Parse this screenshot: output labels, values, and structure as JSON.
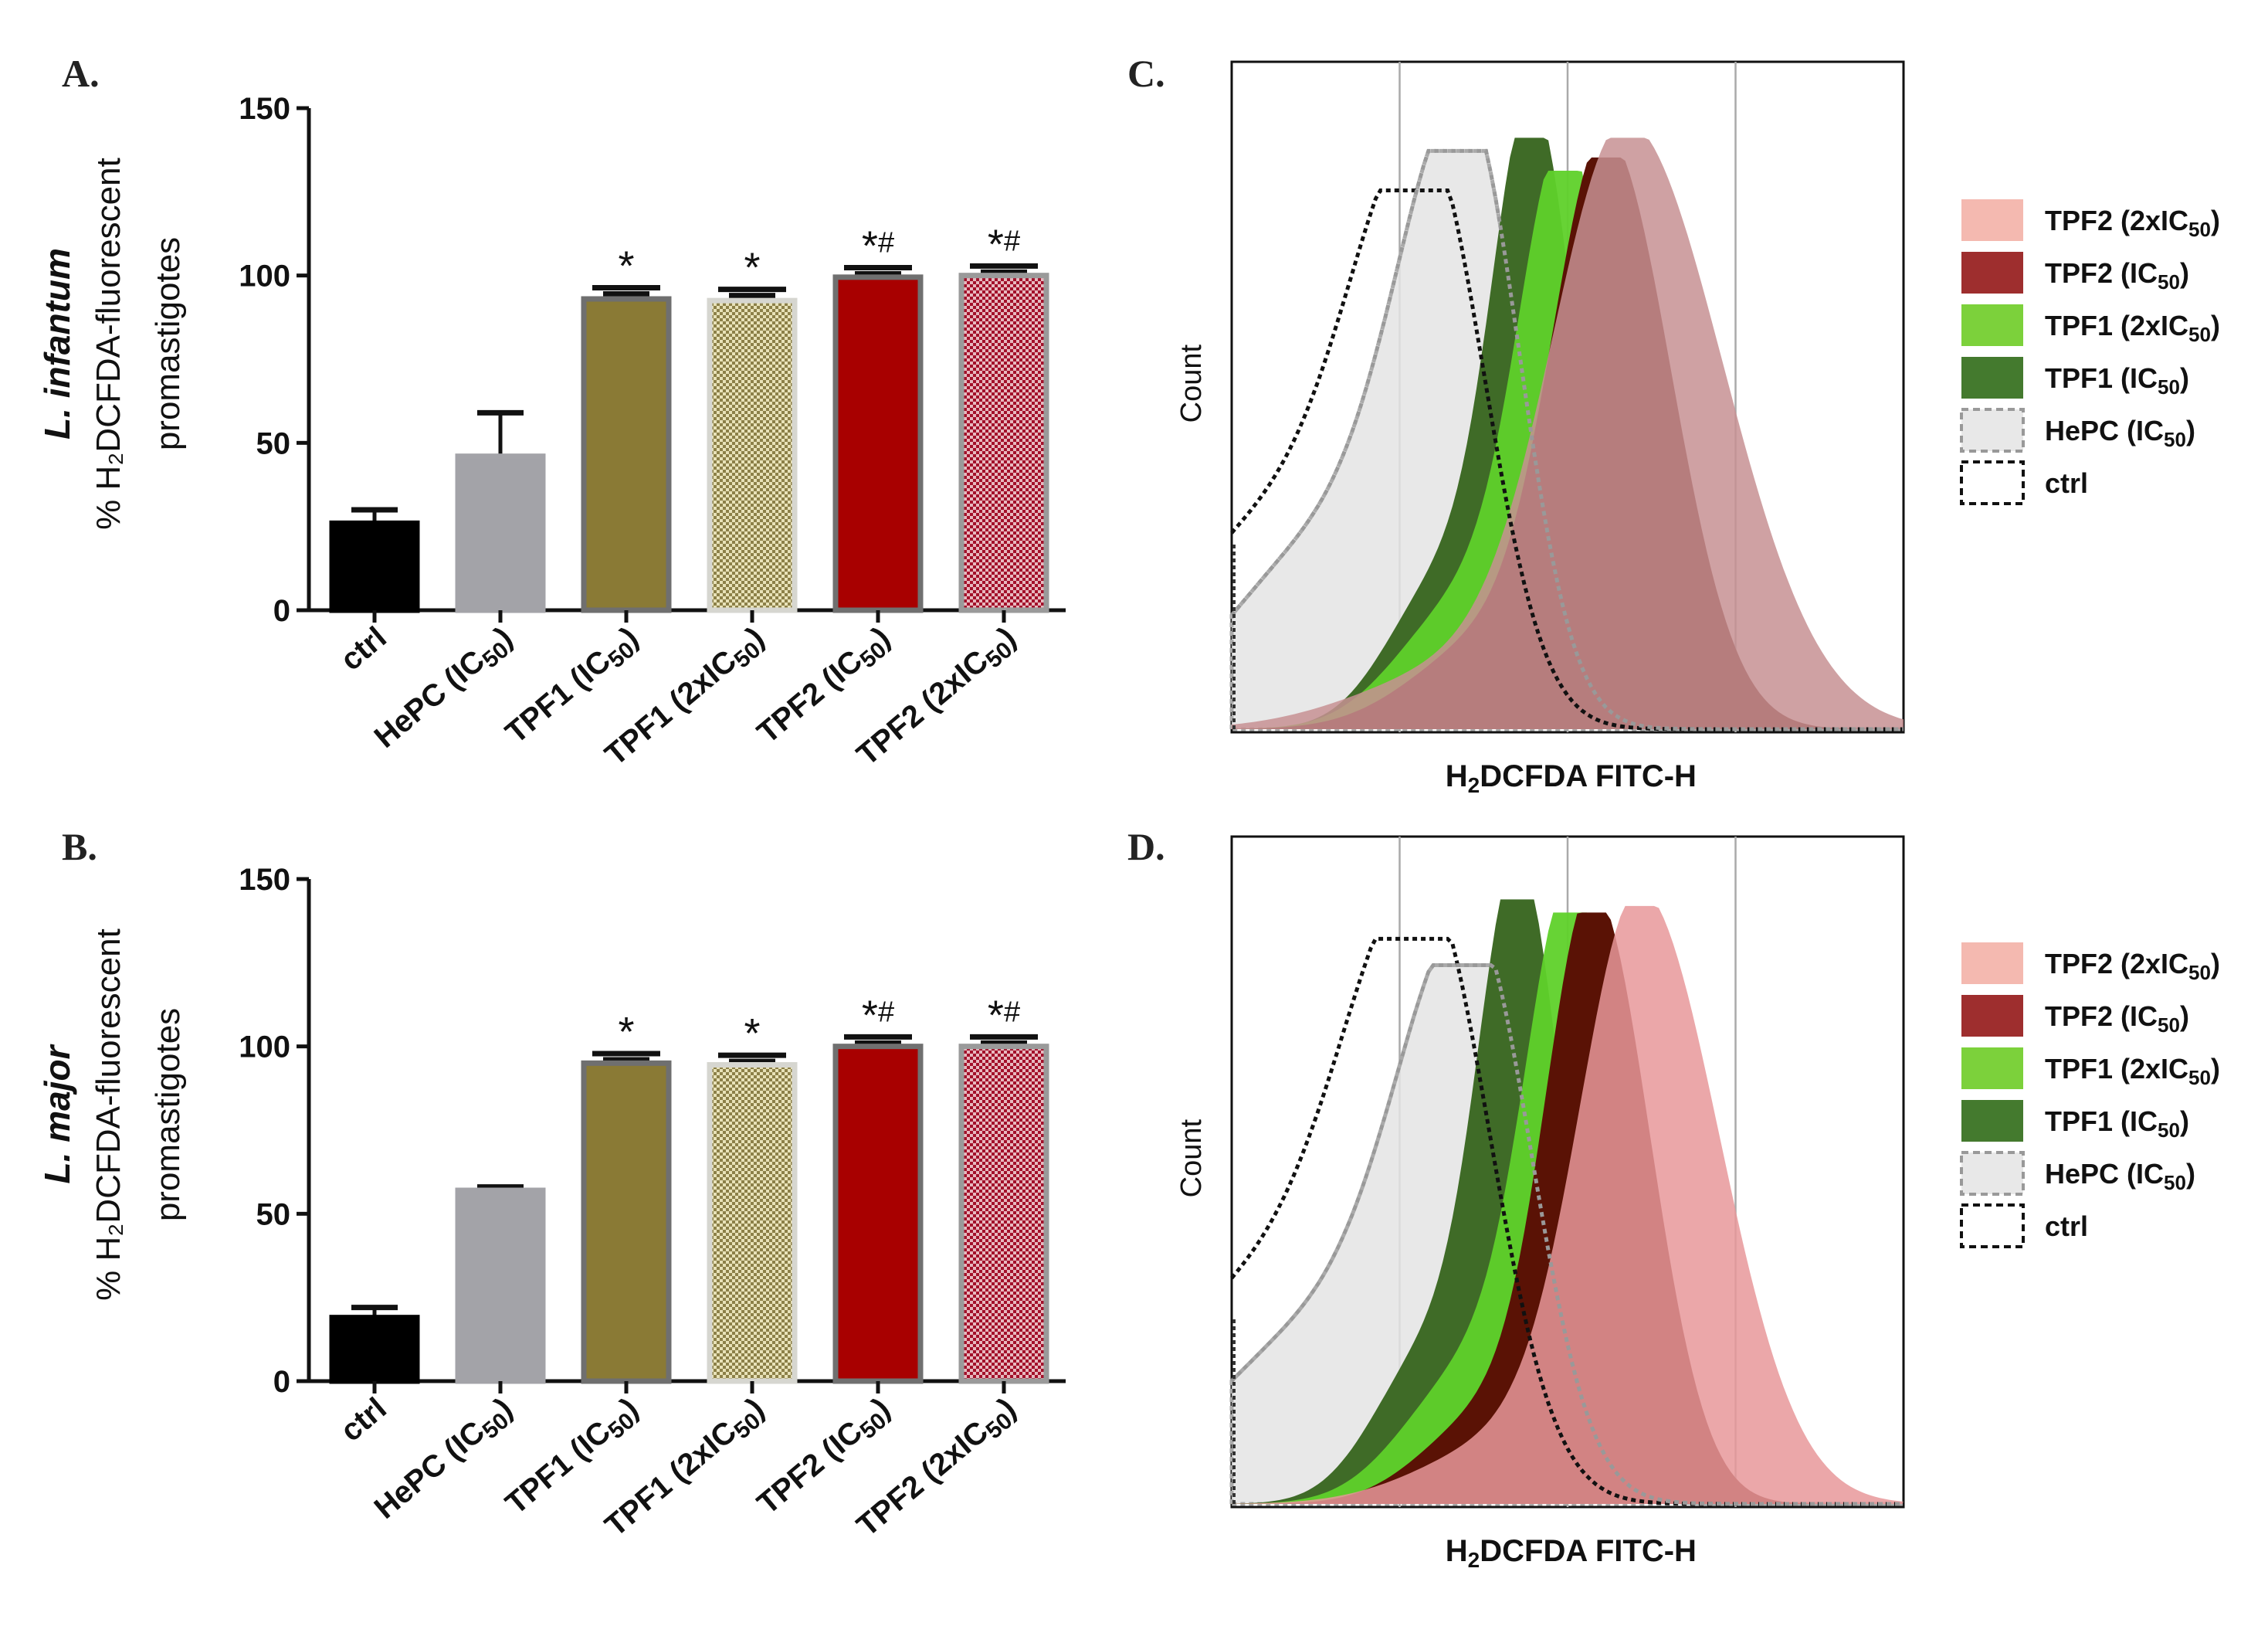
{
  "chart_data": [
    {
      "panel": "A.",
      "type": "bar",
      "species": "L. infantum",
      "ylabel_line1": "% H₂DCFDA-fluorescent",
      "ylabel_line2": "promastigotes",
      "ylim": [
        0,
        150
      ],
      "yticks": [
        0,
        50,
        100,
        150
      ],
      "categories": [
        "ctrl",
        "HePC (IC50)",
        "TPF1 (IC50)",
        "TPF1 (2xIC50)",
        "TPF2 (IC50)",
        "TPF2 (2xIC50)"
      ],
      "values": [
        26,
        46,
        93,
        92.5,
        99.5,
        100
      ],
      "errors": [
        4,
        13,
        1.5,
        1.5,
        1,
        1
      ],
      "significance": [
        "",
        "",
        "*",
        "*",
        "*#",
        "*#"
      ],
      "colors": [
        "#000000",
        "#a3a3a8",
        "#8a7a35",
        "#d8d2a0",
        "#a80000",
        "#c98a93"
      ]
    },
    {
      "panel": "B.",
      "type": "bar",
      "species": "L. major",
      "ylabel_line1": "% H₂DCFDA-fluorescent",
      "ylabel_line2": "promastigotes",
      "ylim": [
        0,
        150
      ],
      "yticks": [
        0,
        50,
        100,
        150
      ],
      "categories": [
        "ctrl",
        "HePC (IC50)",
        "TPF1 (IC50)",
        "TPF1 (2xIC50)",
        "TPF2 (IC50)",
        "TPF2 (2xIC50)"
      ],
      "values": [
        19,
        57,
        95,
        94.5,
        100,
        100
      ],
      "errors": [
        3,
        1,
        1,
        1,
        1,
        1
      ],
      "significance": [
        "",
        "",
        "*",
        "*",
        "*#",
        "*#"
      ],
      "colors": [
        "#000000",
        "#a3a3a8",
        "#8a7a35",
        "#d8d2a0",
        "#a80000",
        "#c98a93"
      ]
    },
    {
      "panel": "C.",
      "type": "area",
      "ylabel": "Count",
      "xlabel": "H₂DCFDA FITC-H",
      "series": [
        {
          "name": "ctrl",
          "peak": 0.29,
          "width": 0.11,
          "height": 0.82
        },
        {
          "name": "HePC (IC50)",
          "peak": 0.35,
          "width": 0.1,
          "height": 0.88
        },
        {
          "name": "TPF1 (IC50)",
          "peak": 0.45,
          "width": 0.06,
          "height": 0.9
        },
        {
          "name": "TPF1 (2xIC50)",
          "peak": 0.5,
          "width": 0.07,
          "height": 0.85
        },
        {
          "name": "TPF2 (IC50)",
          "peak": 0.56,
          "width": 0.08,
          "height": 0.87
        },
        {
          "name": "TPF2 (2xIC50)",
          "peak": 0.59,
          "width": 0.11,
          "height": 0.9
        }
      ]
    },
    {
      "panel": "D.",
      "type": "area",
      "ylabel": "Count",
      "xlabel": "H₂DCFDA FITC-H",
      "series": [
        {
          "name": "ctrl",
          "peak": 0.29,
          "width": 0.12,
          "height": 0.86
        },
        {
          "name": "HePC (IC50)",
          "peak": 0.36,
          "width": 0.11,
          "height": 0.82
        },
        {
          "name": "TPF1 (IC50)",
          "peak": 0.43,
          "width": 0.06,
          "height": 0.92
        },
        {
          "name": "TPF1 (2xIC50)",
          "peak": 0.51,
          "width": 0.07,
          "height": 0.9
        },
        {
          "name": "TPF2 (IC50)",
          "peak": 0.54,
          "width": 0.07,
          "height": 0.9
        },
        {
          "name": "TPF2 (2xIC50)",
          "peak": 0.61,
          "width": 0.09,
          "height": 0.91
        }
      ]
    }
  ],
  "legend": {
    "entries": [
      {
        "base": "TPF2 (2xIC",
        "sub": "50",
        "end": ")",
        "fill": "#f4b9b0",
        "dashed": false
      },
      {
        "base": "TPF2 (IC",
        "sub": "50",
        "end": ")",
        "fill": "#9e2e2e",
        "dashed": false
      },
      {
        "base": "TPF1 (2xIC",
        "sub": "50",
        "end": ")",
        "fill": "#7cd13b",
        "dashed": false
      },
      {
        "base": "TPF1 (IC",
        "sub": "50",
        "end": ")",
        "fill": "#447a2e",
        "dashed": false
      },
      {
        "base": "HePC (IC",
        "sub": "50",
        "end": ")",
        "fill": "#e8e8e8",
        "dashed": true,
        "stroke": "#999999"
      },
      {
        "base": "ctrl",
        "sub": "",
        "end": "",
        "fill": "#ffffff",
        "dashed": true,
        "stroke": "#111111"
      }
    ]
  },
  "hist_colors": {
    "ctrl": "#111111",
    "HePC (IC50)": "#e4e4e4",
    "TPF1 (IC50)": "#3f6b27",
    "TPF1 (2xIC50)": "#5fd12a",
    "TPF2 (IC50)": "#5a1205",
    "TPF2 (2xIC50)": "#c79093",
    "TPF2 (2xIC50)-D": "#e8989a"
  }
}
